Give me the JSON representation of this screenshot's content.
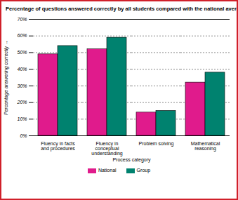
{
  "chart_data": {
    "type": "bar",
    "title": "Percentage of questions answered correctly by all students compared with the national average",
    "x_label": "Process category",
    "y_label": "Percentage answering correctly",
    "categories": [
      "Fluency in facts and procedures",
      "Fluency in conceptual understanding",
      "Problem solving",
      "Mathematical reasoning"
    ],
    "series": [
      {
        "name": "National",
        "color": "#e01b8c",
        "values": [
          49,
          52,
          14,
          32
        ]
      },
      {
        "name": "Group",
        "color": "#00826f",
        "values": [
          54,
          59,
          15,
          38
        ]
      }
    ],
    "ylim": [
      0,
      70
    ],
    "yticks": [
      {
        "value": 0,
        "label": "0%"
      },
      {
        "value": 10,
        "label": "10%"
      },
      {
        "value": 20,
        "label": "20%"
      },
      {
        "value": 30,
        "label": "30%"
      },
      {
        "value": 40,
        "label": "40%"
      },
      {
        "value": 50,
        "label": "50%"
      },
      {
        "value": 60,
        "label": "60%"
      },
      {
        "value": 70,
        "label": "70%"
      }
    ],
    "grid": true,
    "legend": "bottom"
  }
}
